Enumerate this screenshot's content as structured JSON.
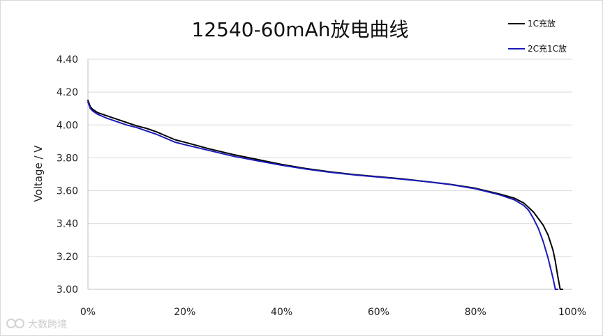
{
  "chart_data": {
    "type": "line",
    "title": "12540-60mAh放电曲线",
    "xlabel": "",
    "ylabel": "Voltage / V",
    "xlim": [
      0,
      100
    ],
    "ylim": [
      3.0,
      4.4
    ],
    "x_unit": "%",
    "x_ticks": [
      "0%",
      "20%",
      "40%",
      "60%",
      "80%",
      "100%"
    ],
    "y_ticks": [
      "3.00",
      "3.20",
      "3.40",
      "3.60",
      "3.80",
      "4.00",
      "4.20",
      "4.40"
    ],
    "grid": {
      "horizontal": true,
      "vertical": false
    },
    "legend_position": "top-right",
    "series": [
      {
        "name": "1C充放",
        "color": "#000000",
        "x": [
          0,
          0.5,
          1,
          2,
          4,
          6,
          8,
          10,
          12,
          14,
          16,
          18,
          20,
          25,
          30,
          35,
          40,
          45,
          50,
          55,
          60,
          65,
          70,
          75,
          80,
          85,
          88,
          90,
          92,
          93,
          94,
          95,
          96,
          96.5,
          97,
          97.5,
          98
        ],
        "y": [
          4.15,
          4.11,
          4.095,
          4.075,
          4.055,
          4.035,
          4.015,
          3.995,
          3.98,
          3.96,
          3.935,
          3.91,
          3.895,
          3.855,
          3.82,
          3.79,
          3.76,
          3.735,
          3.715,
          3.698,
          3.685,
          3.672,
          3.655,
          3.638,
          3.615,
          3.58,
          3.555,
          3.525,
          3.47,
          3.43,
          3.39,
          3.33,
          3.24,
          3.17,
          3.08,
          3.0,
          3.0
        ]
      },
      {
        "name": "2C充1C放",
        "color": "#1a1ab8",
        "x": [
          0,
          0.5,
          1,
          2,
          4,
          6,
          8,
          10,
          12,
          14,
          16,
          18,
          20,
          25,
          30,
          35,
          40,
          45,
          50,
          55,
          60,
          65,
          70,
          75,
          80,
          85,
          88,
          90,
          91,
          92,
          93,
          94,
          95,
          95.5,
          96,
          96.5,
          97
        ],
        "y": [
          4.14,
          4.1,
          4.085,
          4.065,
          4.04,
          4.02,
          4.0,
          3.985,
          3.965,
          3.945,
          3.92,
          3.895,
          3.88,
          3.845,
          3.81,
          3.782,
          3.755,
          3.732,
          3.712,
          3.696,
          3.683,
          3.67,
          3.655,
          3.637,
          3.612,
          3.575,
          3.545,
          3.51,
          3.48,
          3.43,
          3.37,
          3.29,
          3.19,
          3.13,
          3.07,
          3.0,
          3.0
        ]
      }
    ]
  },
  "watermark": {
    "text": "大数跨境",
    "icon": "logo-icon"
  }
}
